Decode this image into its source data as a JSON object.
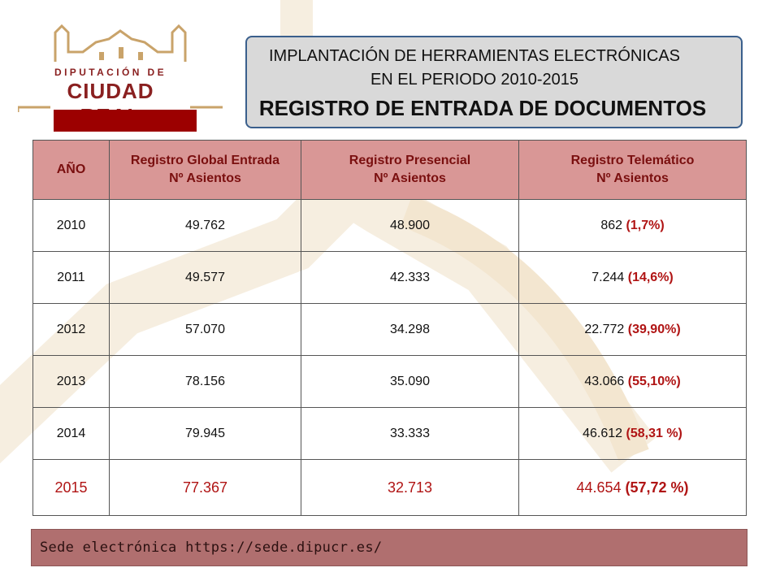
{
  "logo": {
    "line1": "DIPUTACIÓN DE",
    "line2": "CIUDAD REAL"
  },
  "title": {
    "line1": "IMPLANTACIÓN DE HERRAMIENTAS  ELECTRÓNICAS",
    "line2": "EN EL PERIODO 2010-2015",
    "line3": "REGISTRO DE ENTRADA DE DOCUMENTOS"
  },
  "table": {
    "headers": [
      {
        "l1": "AÑO",
        "l2": ""
      },
      {
        "l1": "Registro Global Entrada",
        "l2": "Nº Asientos"
      },
      {
        "l1": "Registro Presencial",
        "l2": "Nº Asientos"
      },
      {
        "l1": "Registro Telemático",
        "l2": "Nº Asientos"
      }
    ],
    "rows": [
      {
        "year": "2010",
        "global": "49.762",
        "presencial": "48.900",
        "telematico": "862",
        "pct": "(1,7%)"
      },
      {
        "year": "2011",
        "global": "49.577",
        "presencial": "42.333",
        "telematico": "7.244",
        "pct": "(14,6%)"
      },
      {
        "year": "2012",
        "global": "57.070",
        "presencial": "34.298",
        "telematico": "22.772",
        "pct": "(39,90%)"
      },
      {
        "year": "2013",
        "global": "78.156",
        "presencial": "35.090",
        "telematico": "43.066",
        "pct": "(55,10%)"
      },
      {
        "year": "2014",
        "global": "79.945",
        "presencial": "33.333",
        "telematico": "46.612",
        "pct": "(58,31 %)"
      },
      {
        "year": "2015",
        "global": "77.367",
        "presencial": "32.713",
        "telematico": "44.654",
        "pct": "(57,72 %)"
      }
    ]
  },
  "footer": {
    "text": "Sede electrónica https://sede.dipucr.es/"
  },
  "colors": {
    "header_bg": "#d99796",
    "header_text": "#7a0f0f",
    "accent_red": "#b01414",
    "footer_bg": "#b06f6f",
    "logo_red": "#9c0000"
  }
}
